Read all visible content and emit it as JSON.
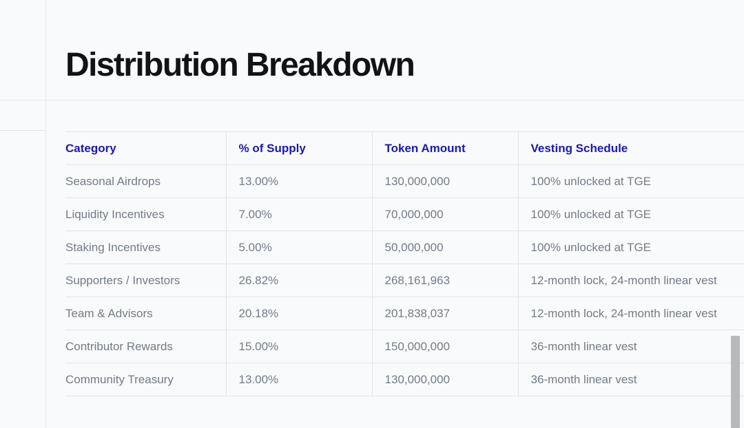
{
  "page": {
    "title": "Distribution Breakdown"
  },
  "table": {
    "columns": [
      "Category",
      "% of Supply",
      "Token Amount",
      "Vesting Schedule"
    ],
    "rows": [
      [
        "Seasonal Airdrops",
        "13.00%",
        "130,000,000",
        "100% unlocked at TGE"
      ],
      [
        "Liquidity Incentives",
        "7.00%",
        "70,000,000",
        "100% unlocked at TGE"
      ],
      [
        "Staking Incentives",
        "5.00%",
        "50,000,000",
        "100% unlocked at TGE"
      ],
      [
        "Supporters / Investors",
        "26.82%",
        "268,161,963",
        "12-month lock, 24-month linear vest"
      ],
      [
        "Team & Advisors",
        "20.18%",
        "201,838,037",
        "12-month lock, 24-month linear vest"
      ],
      [
        "Contributor Rewards",
        "15.00%",
        "150,000,000",
        "36-month linear vest"
      ],
      [
        "Community Treasury",
        "13.00%",
        "130,000,000",
        "36-month linear vest"
      ]
    ]
  },
  "colors": {
    "header_text": "#1a17b8",
    "body_text": "#737b87",
    "title_text": "#111315",
    "background": "#f9fafb",
    "divider": "#e1e4e8",
    "scrollbar": "#b9b9b9"
  }
}
